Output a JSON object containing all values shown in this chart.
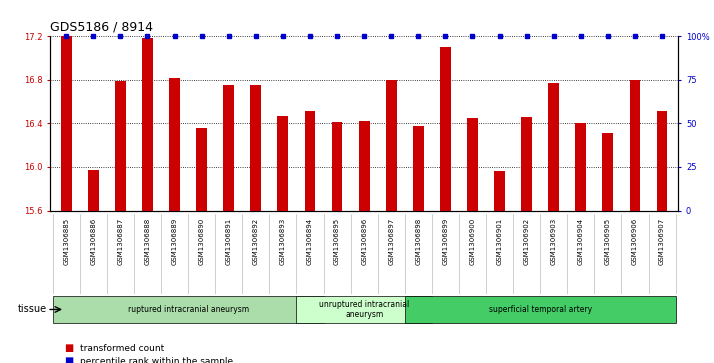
{
  "title": "GDS5186 / 8914",
  "samples": [
    "GSM1306885",
    "GSM1306886",
    "GSM1306887",
    "GSM1306888",
    "GSM1306889",
    "GSM1306890",
    "GSM1306891",
    "GSM1306892",
    "GSM1306893",
    "GSM1306894",
    "GSM1306895",
    "GSM1306896",
    "GSM1306897",
    "GSM1306898",
    "GSM1306899",
    "GSM1306900",
    "GSM1306901",
    "GSM1306902",
    "GSM1306903",
    "GSM1306904",
    "GSM1306905",
    "GSM1306906",
    "GSM1306907"
  ],
  "values": [
    17.2,
    15.97,
    16.79,
    17.18,
    16.82,
    16.36,
    16.75,
    16.75,
    16.47,
    16.51,
    16.41,
    16.42,
    16.8,
    16.38,
    17.1,
    16.45,
    15.96,
    16.46,
    16.77,
    16.4,
    16.31,
    16.8,
    16.51
  ],
  "ylim": [
    15.6,
    17.2
  ],
  "yticks": [
    15.6,
    16.0,
    16.4,
    16.8,
    17.2
  ],
  "right_yticks": [
    0,
    25,
    50,
    75,
    100
  ],
  "right_ylabels": [
    "0",
    "25",
    "50",
    "75",
    "100%"
  ],
  "bar_color": "#cc0000",
  "percentile_color": "#0000cc",
  "plot_bg": "#ffffff",
  "group_bg": "#d8d8d8",
  "groups": [
    {
      "label": "ruptured intracranial aneurysm",
      "start": 0,
      "end": 9,
      "color": "#aaddaa"
    },
    {
      "label": "unruptured intracranial\naneurysm",
      "start": 9,
      "end": 13,
      "color": "#ccffcc"
    },
    {
      "label": "superficial temporal artery",
      "start": 13,
      "end": 22,
      "color": "#44cc66"
    }
  ],
  "legend_bar_label": "transformed count",
  "legend_percentile_label": "percentile rank within the sample",
  "title_fontsize": 9,
  "tick_fontsize": 6,
  "label_fontsize": 6.5
}
